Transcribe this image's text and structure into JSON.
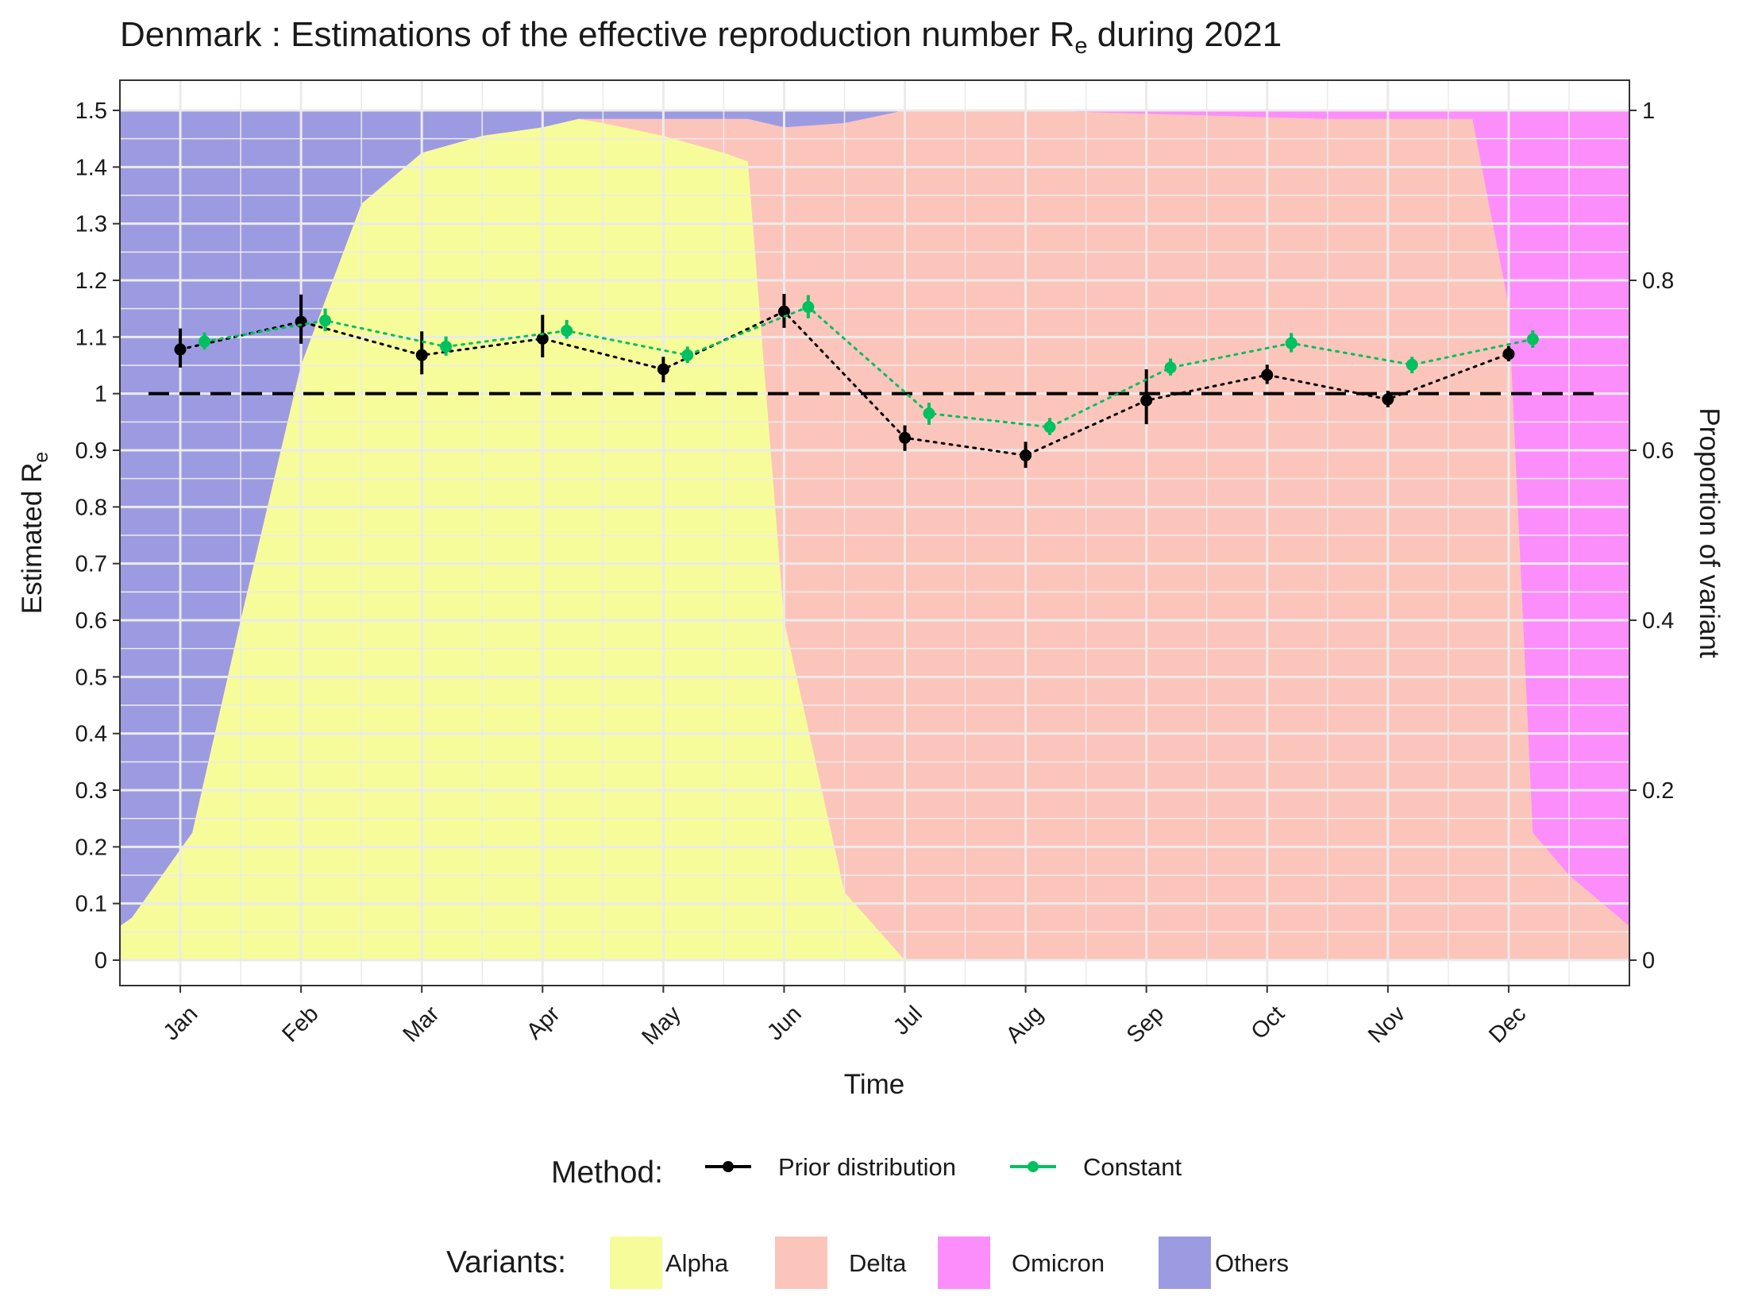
{
  "chart_data": {
    "type": "line",
    "title_main": "Denmark : Estimations of the effective reproduction number R",
    "title_sub": "e",
    "title_tail": " during 2021",
    "xlabel": "Time",
    "ylabel_main": "Estimated R",
    "ylabel_sub": "e",
    "y2label": "Proportion of variant",
    "ylim": [
      0,
      1.5
    ],
    "xlim": [
      -0.5,
      12.0
    ],
    "y_ticks": [
      "0",
      "0.1",
      "0.2",
      "0.3",
      "0.4",
      "0.5",
      "0.6",
      "0.7",
      "0.8",
      "0.9",
      "1",
      "1.1",
      "1.2",
      "1.3",
      "1.4",
      "1.5"
    ],
    "y2_ticks": [
      "0",
      "0.2",
      "0.4",
      "0.6",
      "0.8",
      "1"
    ],
    "months": [
      "Jan",
      "Feb",
      "Mar",
      "Apr",
      "May",
      "Jun",
      "Jul",
      "Aug",
      "Sep",
      "Oct",
      "Nov",
      "Dec"
    ],
    "reference_line": 1,
    "grid": true,
    "series": [
      {
        "name": "Prior distribution",
        "color": "#000000",
        "x": [
          0.0,
          1.0,
          2.0,
          3.0,
          4.0,
          5.0,
          6.0,
          7.0,
          8.0,
          9.0,
          10.0,
          11.0
        ],
        "values": [
          1.078,
          1.127,
          1.068,
          1.097,
          1.043,
          1.145,
          0.922,
          0.891,
          0.988,
          1.033,
          0.99,
          1.07
        ],
        "lower": [
          1.046,
          1.088,
          1.034,
          1.064,
          1.02,
          1.116,
          0.899,
          0.869,
          0.946,
          1.017,
          0.976,
          1.057
        ],
        "upper": [
          1.115,
          1.175,
          1.11,
          1.139,
          1.065,
          1.176,
          0.944,
          0.915,
          1.043,
          1.051,
          1.005,
          1.084
        ]
      },
      {
        "name": "Constant",
        "color": "#00c060",
        "x": [
          0.2,
          1.2,
          2.2,
          3.2,
          4.2,
          5.2,
          6.2,
          7.2,
          8.2,
          9.2,
          10.2,
          11.2
        ],
        "values": [
          1.092,
          1.129,
          1.083,
          1.111,
          1.068,
          1.153,
          0.965,
          0.941,
          1.046,
          1.089,
          1.051,
          1.096
        ],
        "lower": [
          1.078,
          1.11,
          1.067,
          1.097,
          1.054,
          1.133,
          0.945,
          0.927,
          1.032,
          1.073,
          1.036,
          1.081
        ],
        "upper": [
          1.108,
          1.15,
          1.101,
          1.13,
          1.083,
          1.174,
          0.984,
          0.957,
          1.062,
          1.107,
          1.065,
          1.112
        ]
      }
    ],
    "method_legend": {
      "title": "Method:",
      "items": [
        "Prior distribution",
        "Constant"
      ]
    },
    "variant_legend": {
      "title": "Variants:",
      "items": [
        "Alpha",
        "Delta",
        "Omicron",
        "Others"
      ]
    },
    "variants": {
      "colors": {
        "Alpha": "#f7fc9a",
        "Delta": "#fcc5bb",
        "Omicron": "#fc8efc",
        "Others": "#9c9be1"
      },
      "x": [
        -0.5,
        -0.4,
        0.1,
        0.5,
        1.0,
        1.5,
        2.0,
        2.5,
        3.0,
        3.3,
        3.5,
        4.0,
        4.5,
        4.7,
        5.0,
        5.5,
        6.0,
        6.5,
        7.0,
        7.5,
        8.0,
        8.5,
        9.0,
        9.5,
        10.0,
        10.5,
        10.7,
        11.0,
        11.2,
        11.5,
        12.0
      ],
      "alpha_cum": [
        0.04,
        0.05,
        0.15,
        0.4,
        0.7,
        0.89,
        0.95,
        0.97,
        0.98,
        0.99,
        0.985,
        0.97,
        0.95,
        0.94,
        0.4,
        0.08,
        0.0,
        0.0,
        0.0,
        0.0,
        0.0,
        0.0,
        0.0,
        0.0,
        0.0,
        0.0,
        0.0,
        0.0,
        0.0,
        0.0,
        0.0
      ],
      "delta_cum": [
        0.04,
        0.05,
        0.15,
        0.4,
        0.7,
        0.89,
        0.95,
        0.97,
        0.98,
        0.99,
        0.99,
        0.99,
        0.99,
        0.99,
        0.98,
        0.985,
        1.0,
        1.0,
        1.0,
        0.998,
        0.996,
        0.994,
        0.992,
        0.99,
        0.99,
        0.99,
        0.99,
        0.77,
        0.15,
        0.1,
        0.04
      ],
      "omicron_cum": [
        0.04,
        0.05,
        0.15,
        0.4,
        0.7,
        0.89,
        0.95,
        0.97,
        0.98,
        0.99,
        0.99,
        0.99,
        0.99,
        0.99,
        0.98,
        0.985,
        1.0,
        1.0,
        1.0,
        1.0,
        1.0,
        1.0,
        1.0,
        1.0,
        1.0,
        1.0,
        1.0,
        1.0,
        1.0,
        1.0,
        1.0
      ]
    }
  }
}
